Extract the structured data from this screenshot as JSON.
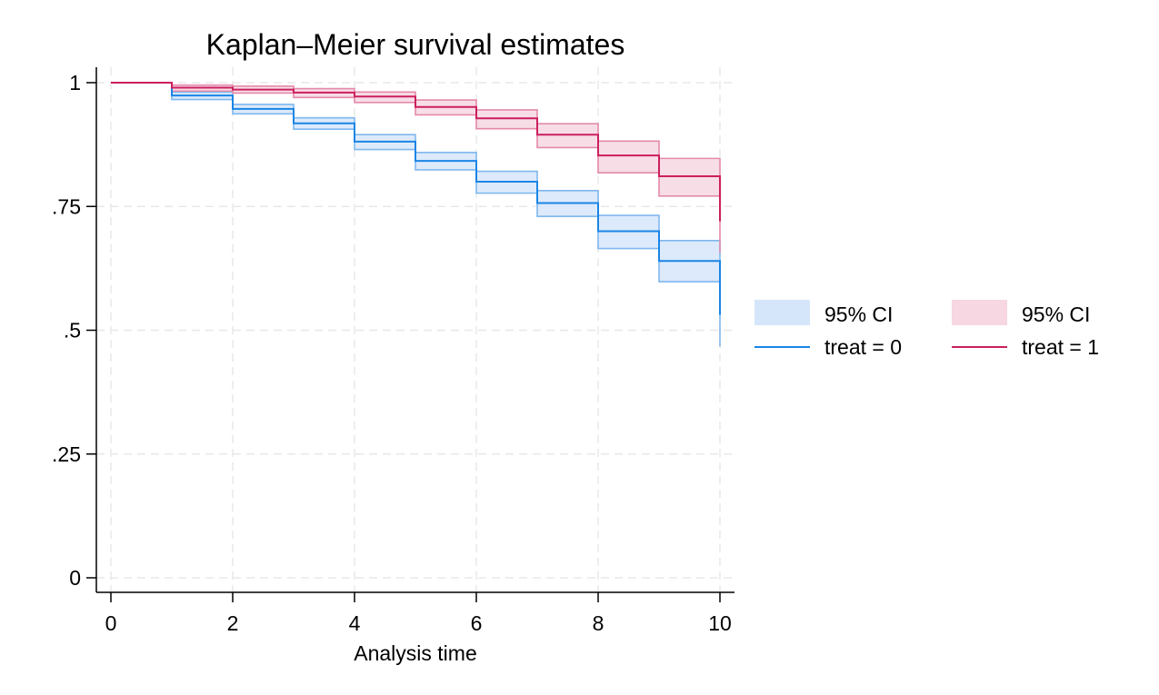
{
  "chart_data": {
    "type": "line",
    "step": true,
    "title": "Kaplan–Meier survival estimates",
    "xlabel": "Analysis time",
    "ylabel": "",
    "xlim": [
      0,
      10
    ],
    "ylim": [
      0,
      1
    ],
    "xticks": [
      0,
      2,
      4,
      6,
      8,
      10
    ],
    "xtick_labels": [
      "0",
      "2",
      "4",
      "6",
      "8",
      "10"
    ],
    "yticks": [
      0,
      0.25,
      0.5,
      0.75,
      1
    ],
    "ytick_labels": [
      "0",
      ".25",
      ".5",
      ".75",
      "1"
    ],
    "grid": true,
    "legend_position": "right",
    "series": [
      {
        "name": "treat = 0",
        "ci_name": "95% CI",
        "color": "#1a85e6",
        "ci_fill": "#d6e6fa",
        "ci_line": "#80b8ee",
        "x": [
          0,
          1,
          2,
          3,
          4,
          5,
          6,
          7,
          8,
          9,
          10
        ],
        "survival": [
          1.0,
          0.974,
          0.947,
          0.918,
          0.881,
          0.842,
          0.8,
          0.757,
          0.7,
          0.64,
          0.531
        ],
        "ci_lower": [
          1.0,
          0.966,
          0.937,
          0.906,
          0.865,
          0.824,
          0.777,
          0.73,
          0.665,
          0.598,
          0.467
        ],
        "ci_upper": [
          1.0,
          0.981,
          0.956,
          0.929,
          0.895,
          0.859,
          0.821,
          0.782,
          0.732,
          0.681,
          0.605
        ]
      },
      {
        "name": "treat = 1",
        "ci_name": "95% CI",
        "color": "#cc1f5e",
        "ci_fill": "#f6d7e2",
        "ci_line": "#e48aab",
        "x": [
          0,
          1,
          2,
          3,
          4,
          5,
          6,
          7,
          8,
          9,
          10
        ],
        "survival": [
          1.0,
          0.99,
          0.986,
          0.98,
          0.972,
          0.951,
          0.928,
          0.895,
          0.853,
          0.811,
          0.72
        ],
        "ci_lower": [
          1.0,
          0.983,
          0.979,
          0.97,
          0.96,
          0.935,
          0.907,
          0.869,
          0.818,
          0.771,
          0.657
        ],
        "ci_upper": [
          1.0,
          0.995,
          0.993,
          0.988,
          0.981,
          0.965,
          0.945,
          0.917,
          0.882,
          0.847,
          0.782
        ]
      }
    ]
  }
}
